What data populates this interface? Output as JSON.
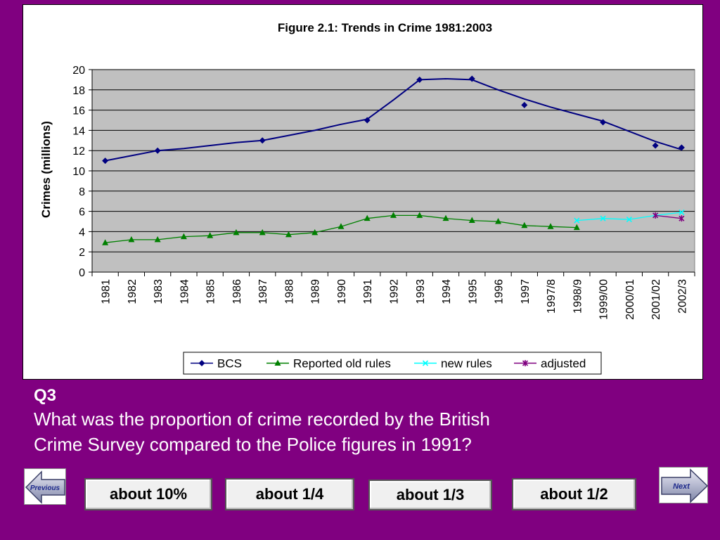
{
  "chart_data": {
    "type": "line",
    "title": "Figure 2.1: Trends in Crime 1981:2003",
    "ylabel": "Crimes (millions)",
    "xlabel": "",
    "ylim": [
      0,
      20
    ],
    "yticks": [
      0,
      2,
      4,
      6,
      8,
      10,
      12,
      14,
      16,
      18,
      20
    ],
    "grid": true,
    "legend_position": "bottom",
    "categories": [
      "1981",
      "1982",
      "1983",
      "1984",
      "1985",
      "1986",
      "1987",
      "1988",
      "1989",
      "1990",
      "1991",
      "1992",
      "1993",
      "1994",
      "1995",
      "1996",
      "1997",
      "1997/8",
      "1998/9",
      "1999/00",
      "2000/01",
      "2001/02",
      "2002/3"
    ],
    "series": [
      {
        "name": "BCS",
        "color": "#000080",
        "marker": "diamond",
        "values": [
          11.0,
          11.5,
          12.0,
          12.2,
          12.5,
          12.8,
          13.0,
          13.5,
          14.0,
          14.6,
          15.0,
          17.0,
          19.0,
          19.1,
          19.1,
          18.0,
          16.5,
          16.3,
          15.6,
          14.8,
          13.9,
          12.5,
          12.3
        ],
        "marked": [
          true,
          false,
          true,
          false,
          false,
          false,
          true,
          false,
          false,
          false,
          true,
          false,
          true,
          false,
          true,
          false,
          true,
          false,
          false,
          true,
          false,
          true,
          true
        ],
        "line": [
          11.0,
          11.5,
          12.0,
          12.2,
          12.5,
          12.8,
          13.0,
          13.5,
          14.0,
          14.6,
          15.1,
          17.0,
          19.0,
          19.1,
          19.0,
          18.0,
          17.1,
          16.3,
          15.6,
          14.9,
          13.9,
          12.9,
          12.1
        ]
      },
      {
        "name": "Reported old rules",
        "color": "#008000",
        "marker": "triangle",
        "values": [
          2.9,
          3.2,
          3.2,
          3.5,
          3.6,
          3.9,
          3.9,
          3.7,
          3.9,
          4.5,
          5.3,
          5.6,
          5.6,
          5.3,
          5.1,
          5.0,
          4.6,
          4.5,
          4.4,
          null,
          null,
          null,
          null
        ]
      },
      {
        "name": "new rules",
        "color": "#00ffff",
        "marker": "x",
        "values": [
          null,
          null,
          null,
          null,
          null,
          null,
          null,
          null,
          null,
          null,
          null,
          null,
          null,
          null,
          null,
          null,
          null,
          null,
          5.1,
          5.3,
          5.2,
          5.6,
          5.9
        ]
      },
      {
        "name": "adjusted",
        "color": "#800080",
        "marker": "star",
        "values": [
          null,
          null,
          null,
          null,
          null,
          null,
          null,
          null,
          null,
          null,
          null,
          null,
          null,
          null,
          null,
          null,
          null,
          null,
          null,
          null,
          null,
          5.6,
          5.3
        ]
      }
    ]
  },
  "question": {
    "label": "Q3",
    "line1": "What was the proportion of crime recorded by the British",
    "line2": "Crime Survey compared to the Police figures in 1991?"
  },
  "answers": [
    {
      "label": "about 10%"
    },
    {
      "label": "about 1/4"
    },
    {
      "label": "about 1/3"
    },
    {
      "label": "about 1/2"
    }
  ],
  "nav": {
    "previous_label": "Previous",
    "next_label": "Next"
  }
}
